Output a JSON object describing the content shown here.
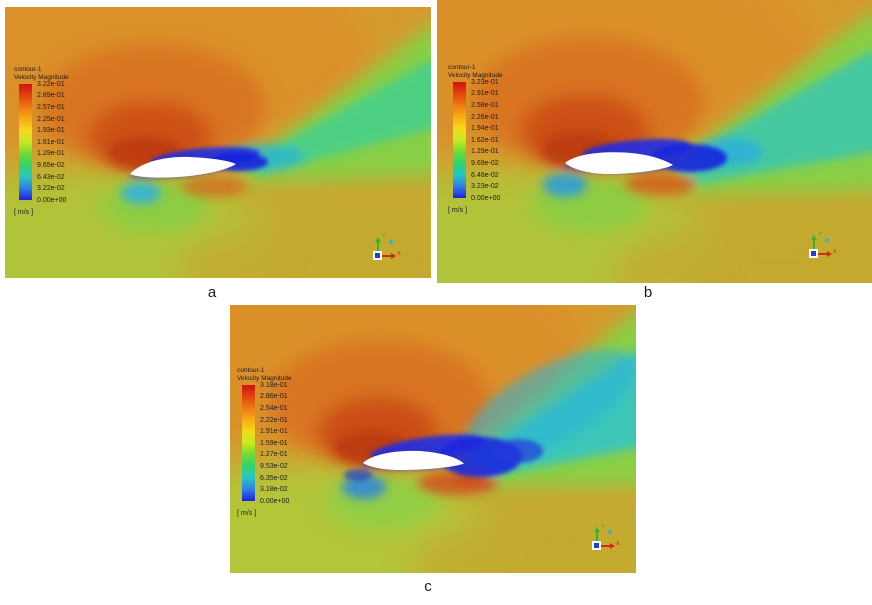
{
  "panels": [
    {
      "caption": "a",
      "legend": {
        "title": "contour-1",
        "subtitle": "Velocity Magnitude",
        "unit": "[ m/s ]",
        "values": [
          "3.22e-01",
          "2.89e-01",
          "2.57e-01",
          "2.25e-01",
          "1.93e-01",
          "1.61e-01",
          "1.29e-01",
          "9.65e-02",
          "6.43e-02",
          "3.22e-02",
          "0.00e+00"
        ]
      },
      "triad": {
        "x_label": "X",
        "y_label": "Y"
      }
    },
    {
      "caption": "b",
      "legend": {
        "title": "contour-1",
        "subtitle": "Velocity Magnitude",
        "unit": "[ m/s ]",
        "values": [
          "3.23e-01",
          "2.91e-01",
          "2.58e-01",
          "2.26e-01",
          "1.94e-01",
          "1.62e-01",
          "1.29e-01",
          "9.69e-02",
          "6.46e-02",
          "3.23e-02",
          "0.00e+00"
        ]
      },
      "triad": {
        "x_label": "X",
        "y_label": "Y"
      }
    },
    {
      "caption": "c",
      "legend": {
        "title": "contour-1",
        "subtitle": "Velocity Magnitude",
        "unit": "[ m/s ]",
        "values": [
          "3.18e-01",
          "2.86e-01",
          "2.54e-01",
          "2.22e-01",
          "1.91e-01",
          "1.59e-01",
          "1.27e-01",
          "9.53e-02",
          "6.35e-02",
          "3.18e-02",
          "0.00e+00"
        ]
      },
      "triad": {
        "x_label": "X",
        "y_label": "Y"
      }
    }
  ],
  "colors": {
    "colormap_max": "#d31111",
    "colormap_min": "#2121dc"
  },
  "chart_data": [
    {
      "type": "heatmap",
      "panel": "a",
      "title": "contour-1",
      "variable": "Velocity Magnitude",
      "unit": "m/s",
      "levels": [
        0.322,
        0.289,
        0.257,
        0.225,
        0.193,
        0.161,
        0.129,
        0.0965,
        0.0643,
        0.0322,
        0.0
      ],
      "range": [
        0.0,
        0.322
      ],
      "colormap": "rainbow blue-to-red",
      "legend_position": "left",
      "subject": "velocity magnitude contour around an airfoil with separated wake"
    },
    {
      "type": "heatmap",
      "panel": "b",
      "title": "contour-1",
      "variable": "Velocity Magnitude",
      "unit": "m/s",
      "levels": [
        0.323,
        0.291,
        0.258,
        0.226,
        0.194,
        0.162,
        0.129,
        0.0969,
        0.0646,
        0.0323,
        0.0
      ],
      "range": [
        0.0,
        0.323
      ],
      "colormap": "rainbow blue-to-red",
      "legend_position": "left",
      "subject": "velocity magnitude contour around an airfoil with separated wake"
    },
    {
      "type": "heatmap",
      "panel": "c",
      "title": "contour-1",
      "variable": "Velocity Magnitude",
      "unit": "m/s",
      "levels": [
        0.318,
        0.286,
        0.254,
        0.222,
        0.191,
        0.159,
        0.127,
        0.0953,
        0.0635,
        0.0318,
        0.0
      ],
      "range": [
        0.0,
        0.318
      ],
      "colormap": "rainbow blue-to-red",
      "legend_position": "left",
      "subject": "velocity magnitude contour around an airfoil with separated wake"
    }
  ]
}
